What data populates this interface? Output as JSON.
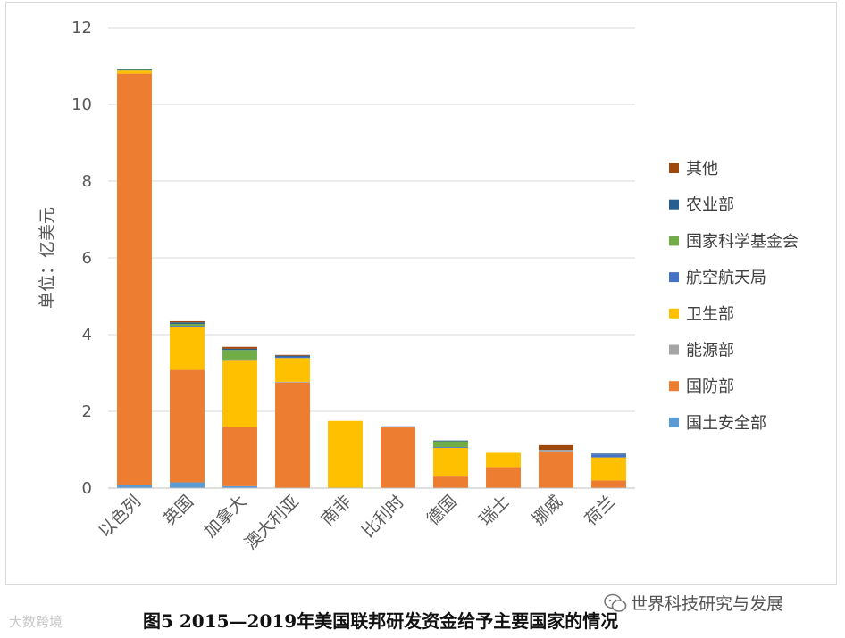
{
  "caption": "图5 2015—2019年美国联邦研发资金给予主要国家的情况",
  "watermark_left": "大数跨境",
  "watermark_right": "世界科技研究与发展",
  "chart_data": {
    "type": "bar",
    "stacked": true,
    "title": "",
    "xlabel": "",
    "ylabel": "单位：亿美元",
    "ylim": [
      0,
      12
    ],
    "yticks": [
      0,
      2,
      4,
      6,
      8,
      10,
      12
    ],
    "grid": true,
    "legend_position": "right",
    "categories": [
      "以色列",
      "英国",
      "加拿大",
      "澳大利亚",
      "南非",
      "比利时",
      "德国",
      "瑞士",
      "挪威",
      "荷兰"
    ],
    "series": [
      {
        "name": "国土安全部",
        "color": "#5b9bd5",
        "values": [
          0.08,
          0.15,
          0.05,
          0,
          0,
          0,
          0,
          0,
          0,
          0
        ]
      },
      {
        "name": "国防部",
        "color": "#ed7d31",
        "values": [
          10.72,
          2.93,
          1.55,
          2.75,
          0,
          1.58,
          0.3,
          0.55,
          0.95,
          0.2
        ]
      },
      {
        "name": "能源部",
        "color": "#a5a5a5",
        "values": [
          0,
          0,
          0,
          0.02,
          0,
          0.02,
          0,
          0,
          0.05,
          0
        ]
      },
      {
        "name": "卫生部",
        "color": "#ffc000",
        "values": [
          0.08,
          1.12,
          1.72,
          0.62,
          1.75,
          0,
          0.75,
          0.37,
          0,
          0.6
        ]
      },
      {
        "name": "航空航天局",
        "color": "#4472c4",
        "values": [
          0.02,
          0.03,
          0.03,
          0.03,
          0,
          0.01,
          0.02,
          0,
          0,
          0.08
        ]
      },
      {
        "name": "国家科学基金会",
        "color": "#70ad47",
        "values": [
          0.02,
          0.05,
          0.25,
          0,
          0,
          0,
          0.15,
          0,
          0,
          0
        ]
      },
      {
        "name": "农业部",
        "color": "#255e91",
        "values": [
          0.01,
          0.04,
          0.03,
          0.03,
          0,
          0,
          0.02,
          0,
          0,
          0.02
        ]
      },
      {
        "name": "其他",
        "color": "#9e480e",
        "values": [
          0,
          0.03,
          0.05,
          0.02,
          0,
          0,
          0,
          0,
          0.12,
          0
        ]
      }
    ]
  }
}
